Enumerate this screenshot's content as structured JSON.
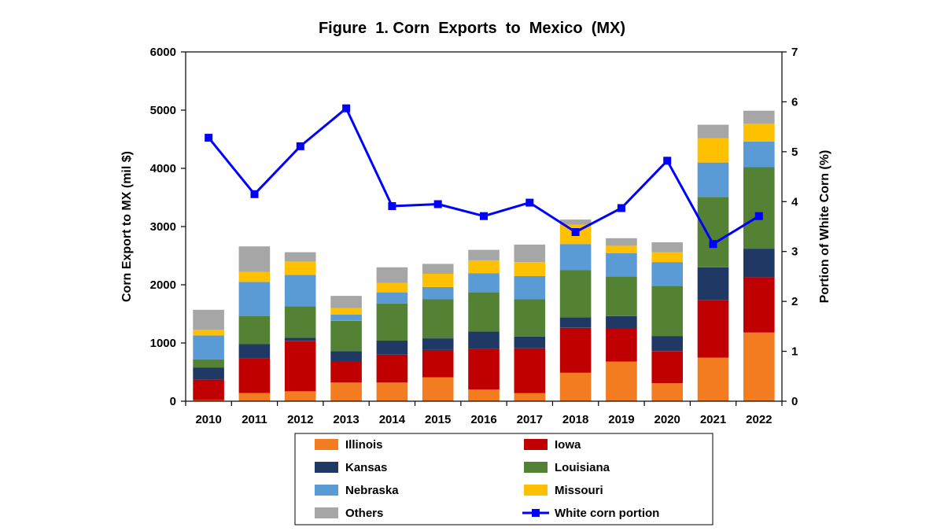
{
  "chart_data": {
    "type": "bar",
    "stacked": true,
    "title": "Figure  1. Corn  Exports  to  Mexico  (MX)",
    "ylabel": "Corn Export to MX (mil $)",
    "y2label": "Portion of White Corn (%)",
    "ylim": [
      0,
      6000
    ],
    "y2lim": [
      0,
      7
    ],
    "yticks": [
      0,
      1000,
      2000,
      3000,
      4000,
      5000,
      6000
    ],
    "y2ticks": [
      0,
      1,
      2,
      3,
      4,
      5,
      6,
      7
    ],
    "grid": false,
    "legend_position": "bottom",
    "categories": [
      "2010",
      "2011",
      "2012",
      "2013",
      "2014",
      "2015",
      "2016",
      "2017",
      "2018",
      "2019",
      "2020",
      "2021",
      "2022"
    ],
    "series": [
      {
        "name": "Illinois",
        "color": "#F47C20",
        "values": [
          20,
          140,
          170,
          320,
          320,
          410,
          200,
          140,
          490,
          680,
          310,
          750,
          1180
        ]
      },
      {
        "name": "Iowa",
        "color": "#C00000",
        "values": [
          350,
          600,
          860,
          370,
          480,
          470,
          700,
          770,
          770,
          570,
          550,
          990,
          950
        ]
      },
      {
        "name": "Kansas",
        "color": "#1F3864",
        "values": [
          210,
          240,
          60,
          170,
          240,
          200,
          300,
          200,
          180,
          210,
          260,
          560,
          490
        ]
      },
      {
        "name": "Louisiana",
        "color": "#548235",
        "values": [
          140,
          480,
          540,
          520,
          640,
          670,
          670,
          640,
          810,
          680,
          860,
          1210,
          1400
        ]
      },
      {
        "name": "Nebraska",
        "color": "#5B9BD5",
        "values": [
          410,
          590,
          540,
          110,
          190,
          210,
          330,
          400,
          450,
          400,
          410,
          590,
          440
        ]
      },
      {
        "name": "Missouri",
        "color": "#FFC000",
        "values": [
          100,
          170,
          230,
          110,
          160,
          230,
          220,
          240,
          330,
          130,
          170,
          420,
          310
        ]
      },
      {
        "name": "Others",
        "color": "#A6A6A6",
        "values": [
          340,
          440,
          160,
          210,
          270,
          170,
          180,
          300,
          90,
          130,
          170,
          230,
          220
        ]
      }
    ],
    "line_series": {
      "name": "White corn portion",
      "color": "#0000FF",
      "axis": "right",
      "values": [
        5.28,
        4.15,
        5.11,
        5.87,
        3.91,
        3.95,
        3.71,
        3.98,
        3.39,
        3.87,
        4.82,
        3.15,
        3.71
      ]
    },
    "legend": [
      "Illinois",
      "Iowa",
      "Kansas",
      "Louisiana",
      "Nebraska",
      "Missouri",
      "Others",
      "White corn portion"
    ]
  }
}
